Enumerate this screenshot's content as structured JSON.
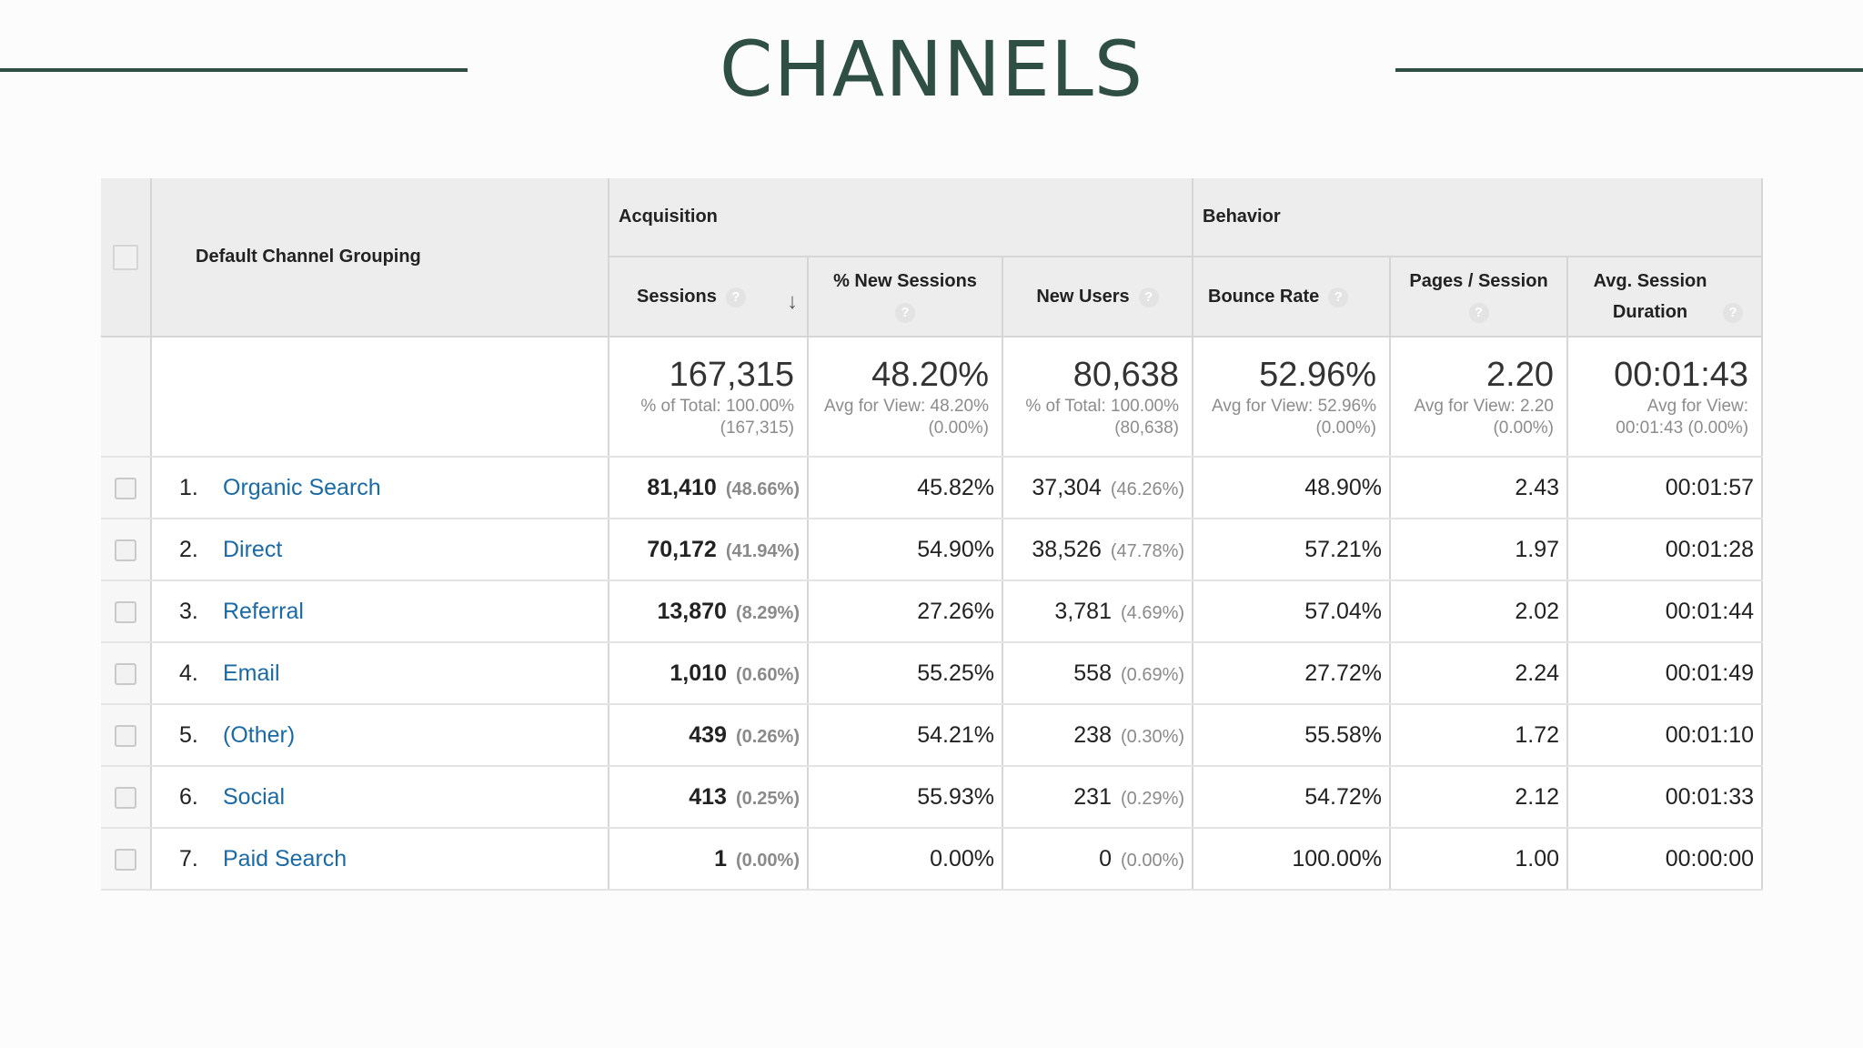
{
  "page_title": "CHANNELS",
  "colors": {
    "accent": "#2f4f45",
    "link": "#1a6aa6",
    "header_bg": "#ededed"
  },
  "table": {
    "dimension_header": "Default Channel Grouping",
    "groups": [
      "Acquisition",
      "Behavior"
    ],
    "metric_headers": {
      "sessions": "Sessions",
      "new_sessions": "% New Sessions",
      "new_users": "New Users",
      "bounce_rate": "Bounce Rate",
      "pages_session": "Pages / Session",
      "avg_duration": "Avg. Session Duration"
    },
    "help_glyph": "?",
    "sort_glyph": "↓",
    "totals": {
      "sessions": {
        "value": "167,315",
        "sub": "% of Total: 100.00% (167,315)"
      },
      "new_sessions": {
        "value": "48.20%",
        "sub": "Avg for View: 48.20% (0.00%)"
      },
      "new_users": {
        "value": "80,638",
        "sub": "% of Total: 100.00% (80,638)"
      },
      "bounce_rate": {
        "value": "52.96%",
        "sub": "Avg for View: 52.96% (0.00%)"
      },
      "pages_session": {
        "value": "2.20",
        "sub": "Avg for View: 2.20 (0.00%)"
      },
      "avg_duration": {
        "value": "00:01:43",
        "sub": "Avg for View: 00:01:43 (0.00%)"
      }
    },
    "rows": [
      {
        "num": "1.",
        "channel": "Organic Search",
        "sessions": "81,410",
        "sessions_pct": "(48.66%)",
        "new_sessions": "45.82%",
        "new_users": "37,304",
        "new_users_pct": "(46.26%)",
        "bounce_rate": "48.90%",
        "pages_session": "2.43",
        "avg_duration": "00:01:57"
      },
      {
        "num": "2.",
        "channel": "Direct",
        "sessions": "70,172",
        "sessions_pct": "(41.94%)",
        "new_sessions": "54.90%",
        "new_users": "38,526",
        "new_users_pct": "(47.78%)",
        "bounce_rate": "57.21%",
        "pages_session": "1.97",
        "avg_duration": "00:01:28"
      },
      {
        "num": "3.",
        "channel": "Referral",
        "sessions": "13,870",
        "sessions_pct": "(8.29%)",
        "new_sessions": "27.26%",
        "new_users": "3,781",
        "new_users_pct": "(4.69%)",
        "bounce_rate": "57.04%",
        "pages_session": "2.02",
        "avg_duration": "00:01:44"
      },
      {
        "num": "4.",
        "channel": "Email",
        "sessions": "1,010",
        "sessions_pct": "(0.60%)",
        "new_sessions": "55.25%",
        "new_users": "558",
        "new_users_pct": "(0.69%)",
        "bounce_rate": "27.72%",
        "pages_session": "2.24",
        "avg_duration": "00:01:49"
      },
      {
        "num": "5.",
        "channel": "(Other)",
        "sessions": "439",
        "sessions_pct": "(0.26%)",
        "new_sessions": "54.21%",
        "new_users": "238",
        "new_users_pct": "(0.30%)",
        "bounce_rate": "55.58%",
        "pages_session": "1.72",
        "avg_duration": "00:01:10"
      },
      {
        "num": "6.",
        "channel": "Social",
        "sessions": "413",
        "sessions_pct": "(0.25%)",
        "new_sessions": "55.93%",
        "new_users": "231",
        "new_users_pct": "(0.29%)",
        "bounce_rate": "54.72%",
        "pages_session": "2.12",
        "avg_duration": "00:01:33"
      },
      {
        "num": "7.",
        "channel": "Paid Search",
        "sessions": "1",
        "sessions_pct": "(0.00%)",
        "new_sessions": "0.00%",
        "new_users": "0",
        "new_users_pct": "(0.00%)",
        "bounce_rate": "100.00%",
        "pages_session": "1.00",
        "avg_duration": "00:00:00"
      }
    ]
  }
}
